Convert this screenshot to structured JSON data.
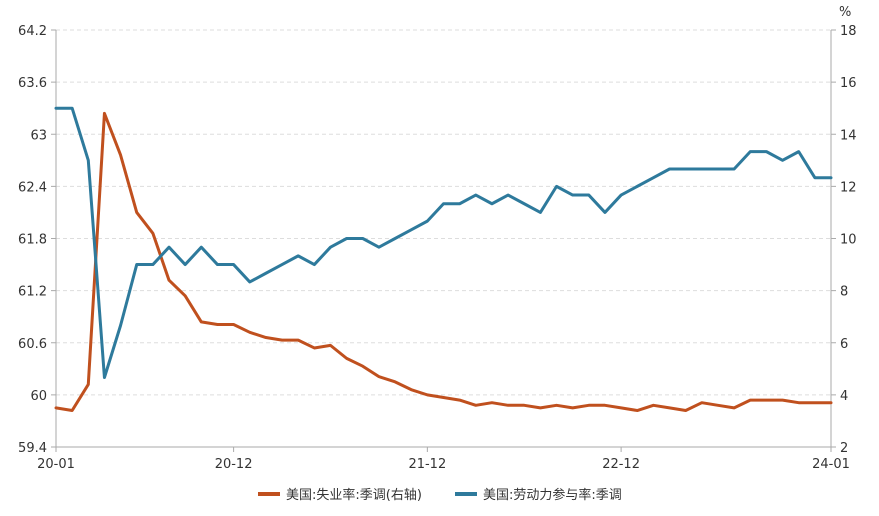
{
  "chart_data": {
    "type": "line",
    "x": [
      "2020-01",
      "2020-02",
      "2020-03",
      "2020-04",
      "2020-05",
      "2020-06",
      "2020-07",
      "2020-08",
      "2020-09",
      "2020-10",
      "2020-11",
      "2020-12",
      "2021-01",
      "2021-02",
      "2021-03",
      "2021-04",
      "2021-05",
      "2021-06",
      "2021-07",
      "2021-08",
      "2021-09",
      "2021-10",
      "2021-11",
      "2021-12",
      "2022-01",
      "2022-02",
      "2022-03",
      "2022-04",
      "2022-05",
      "2022-06",
      "2022-07",
      "2022-08",
      "2022-09",
      "2022-10",
      "2022-11",
      "2022-12",
      "2023-01",
      "2023-02",
      "2023-03",
      "2023-04",
      "2023-05",
      "2023-06",
      "2023-07",
      "2023-08",
      "2023-09",
      "2023-10",
      "2023-11",
      "2023-12",
      "2024-01"
    ],
    "x_tick_labels": [
      "20-01",
      "20-12",
      "21-12",
      "22-12",
      "24-01"
    ],
    "left_axis": {
      "ticks": [
        "64.2",
        "63.6",
        "63",
        "62.4",
        "61.8",
        "61.2",
        "60.6",
        "60",
        "59.4"
      ],
      "ylim": [
        59.4,
        64.2
      ]
    },
    "right_axis": {
      "unit": "%",
      "ticks": [
        "18",
        "16",
        "14",
        "12",
        "10",
        "8",
        "6",
        "4",
        "2"
      ],
      "ylim": [
        2,
        18
      ]
    },
    "grid": true,
    "legend_position": "bottom",
    "series": [
      {
        "name": "美国:失业率:季调(右轴)",
        "axis": "right",
        "color": "#C0501E",
        "values": [
          3.5,
          3.4,
          4.4,
          14.8,
          13.2,
          11.0,
          10.2,
          8.4,
          7.8,
          6.8,
          6.7,
          6.7,
          6.4,
          6.2,
          6.1,
          6.1,
          5.8,
          5.9,
          5.4,
          5.1,
          4.7,
          4.5,
          4.2,
          4.0,
          3.9,
          3.8,
          3.6,
          3.7,
          3.6,
          3.6,
          3.5,
          3.6,
          3.5,
          3.6,
          3.6,
          3.5,
          3.4,
          3.6,
          3.5,
          3.4,
          3.7,
          3.6,
          3.5,
          3.8,
          3.8,
          3.8,
          3.7,
          3.7,
          3.7
        ]
      },
      {
        "name": "美国:劳动力参与率:季调",
        "axis": "left",
        "color": "#2E7A9C",
        "values": [
          63.3,
          63.3,
          62.7,
          60.2,
          60.8,
          61.5,
          61.5,
          61.7,
          61.5,
          61.7,
          61.5,
          61.5,
          61.3,
          61.4,
          61.5,
          61.6,
          61.5,
          61.7,
          61.8,
          61.8,
          61.7,
          61.8,
          61.9,
          62.0,
          62.2,
          62.2,
          62.3,
          62.2,
          62.3,
          62.2,
          62.1,
          62.4,
          62.3,
          62.3,
          62.1,
          62.3,
          62.4,
          62.5,
          62.6,
          62.6,
          62.6,
          62.6,
          62.6,
          62.8,
          62.8,
          62.7,
          62.8,
          62.5,
          62.5
        ]
      }
    ]
  }
}
